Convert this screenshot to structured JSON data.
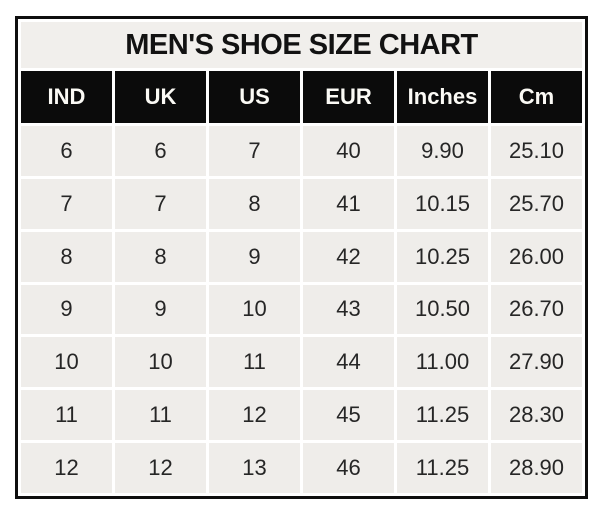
{
  "title": "MEN'S SHOE SIZE CHART",
  "colors": {
    "frame_border": "#0e0e0e",
    "title_background": "#f1efec",
    "header_background": "#0b0b0b",
    "header_text": "#fbfaf5",
    "cell_background": "#efedea",
    "cell_text": "#262626",
    "gridline": "#ffffff",
    "page_background": "#ffffff"
  },
  "chart_data": {
    "type": "table",
    "title": "MEN'S SHOE SIZE CHART",
    "columns": [
      "IND",
      "UK",
      "US",
      "EUR",
      "Inches",
      "Cm"
    ],
    "rows": [
      [
        "6",
        "6",
        "7",
        "40",
        "9.90",
        "25.10"
      ],
      [
        "7",
        "7",
        "8",
        "41",
        "10.15",
        "25.70"
      ],
      [
        "8",
        "8",
        "9",
        "42",
        "10.25",
        "26.00"
      ],
      [
        "9",
        "9",
        "10",
        "43",
        "10.50",
        "26.70"
      ],
      [
        "10",
        "10",
        "11",
        "44",
        "11.00",
        "27.90"
      ],
      [
        "11",
        "11",
        "12",
        "45",
        "11.25",
        "28.30"
      ],
      [
        "12",
        "12",
        "13",
        "46",
        "11.25",
        "28.90"
      ]
    ],
    "layout": {
      "grid": "white gridlines between cells",
      "legend": "none",
      "header_style": "black background, white bold text"
    }
  }
}
